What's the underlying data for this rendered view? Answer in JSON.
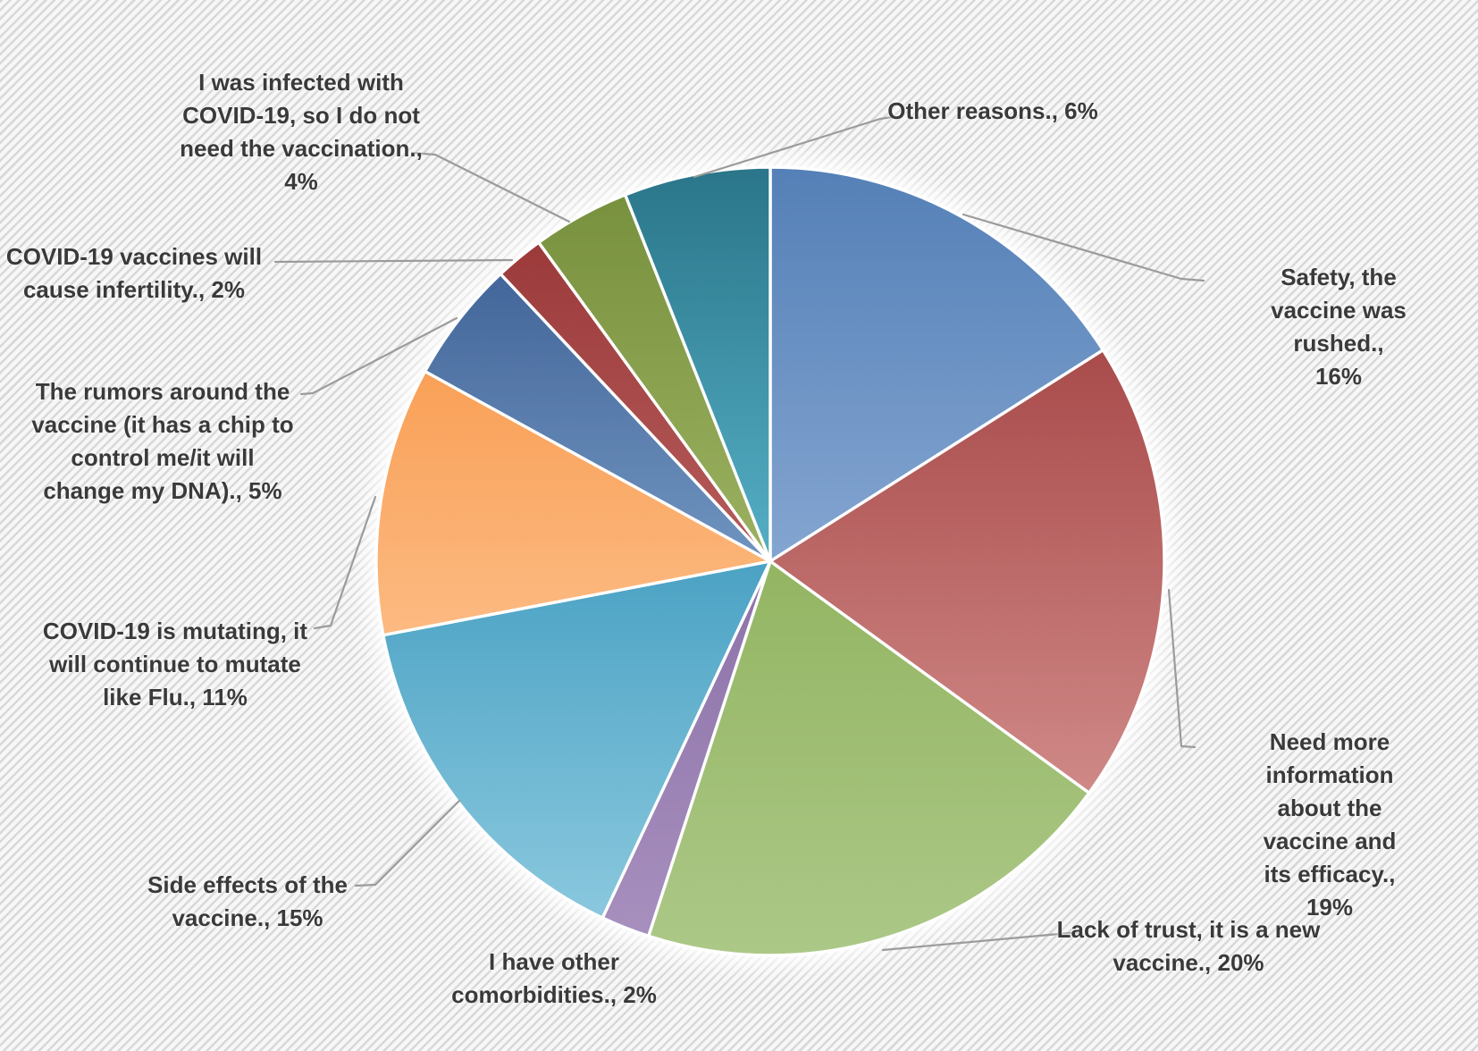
{
  "chart_data": {
    "type": "pie",
    "title": "",
    "value_unit": "%",
    "start_angle_deg": 0,
    "direction": "clockwise",
    "legend": "none",
    "total": 100,
    "slices": [
      {
        "id": "safety",
        "label": "Safety, the vaccine was rushed.",
        "value": 16,
        "label_display": "Safety, the vaccine was rushed., 16%",
        "label_lines": [
          "Safety, the vaccine was",
          "rushed., 16%"
        ],
        "color_top": "#5480B7",
        "color_bottom": "#84A5D1"
      },
      {
        "id": "need_info",
        "label": "Need more information about the vaccine and its efficacy.",
        "value": 19,
        "label_display": "Need more information about the vaccine and its efficacy., 19%",
        "label_lines": [
          "Need more information",
          "about the vaccine and",
          "its efficacy., 19%"
        ],
        "color_top": "#A94B4B",
        "color_bottom": "#CF8987"
      },
      {
        "id": "lack_trust",
        "label": "Lack of trust, it is a new vaccine.",
        "value": 20,
        "label_display": "Lack of trust, it is a new vaccine., 20%",
        "label_lines": [
          "Lack of trust, it is a new",
          "vaccine., 20%"
        ],
        "color_top": "#93B562",
        "color_bottom": "#ACC887"
      },
      {
        "id": "comorbidities",
        "label": "I have other comorbidities.",
        "value": 2,
        "label_display": "I have other comorbidities., 2%",
        "label_lines": [
          "I have other",
          "comorbidities., 2%"
        ],
        "color_top": "#8C72A8",
        "color_bottom": "#A78FBE"
      },
      {
        "id": "side_effects",
        "label": "Side effects of the vaccine.",
        "value": 15,
        "label_display": "Side effects of the vaccine., 15%",
        "label_lines": [
          "Side effects of the",
          "vaccine., 15%"
        ],
        "color_top": "#4BA2C4",
        "color_bottom": "#8AC8DE"
      },
      {
        "id": "mutating",
        "label": "COVID-19 is mutating, it will continue to mutate like Flu.",
        "value": 11,
        "label_display": "COVID-19 is mutating, it will continue to mutate like Flu., 11%",
        "label_lines": [
          "COVID-19 is mutating, it",
          "will continue to mutate",
          "like Flu., 11%"
        ],
        "color_top": "#F9A057",
        "color_bottom": "#FCBA82"
      },
      {
        "id": "rumors",
        "label": "The rumors around the vaccine (it has a chip to control me/it will change my DNA).",
        "value": 5,
        "label_display": "The rumors around the vaccine (it has a chip to control me/it will change my DNA)., 5%",
        "label_lines": [
          "The rumors around the",
          "vaccine (it has a chip to",
          "control me/it will",
          "change my DNA)., 5%"
        ],
        "color_top": "#43669A",
        "color_bottom": "#7094BF"
      },
      {
        "id": "infertility",
        "label": "COVID-19 vaccines will cause infertility.",
        "value": 2,
        "label_display": "COVID-19 vaccines will cause infertility., 2%",
        "label_lines": [
          "COVID-19 vaccines will",
          "cause infertility., 2%"
        ],
        "color_top": "#9C3A3A",
        "color_bottom": "#B55C5B"
      },
      {
        "id": "infected",
        "label": "I was infected with COVID-19, so I do not need the vaccination.",
        "value": 4,
        "label_display": "I was infected with COVID-19, so I do not need the vaccination., 4%",
        "label_lines": [
          "I was infected with",
          "COVID-19, so I do not",
          "need the vaccination.,",
          "4%"
        ],
        "color_top": "#78913E",
        "color_bottom": "#9BB161"
      },
      {
        "id": "other",
        "label": "Other reasons.",
        "value": 6,
        "label_display": "Other reasons., 6%",
        "label_lines": [
          "Other reasons., 6%"
        ],
        "color_top": "#2A7589",
        "color_bottom": "#55AFC5"
      }
    ]
  },
  "styles": {
    "label_text_color": "#3A3A3A",
    "leader_line_color": "#9B9B9B",
    "slice_border_color": "#FFFFFF",
    "pie_halo_color": "#FFFFFF",
    "background_stripe_dark": "#D8D8D8",
    "background_stripe_light": "#F7F7F7"
  }
}
